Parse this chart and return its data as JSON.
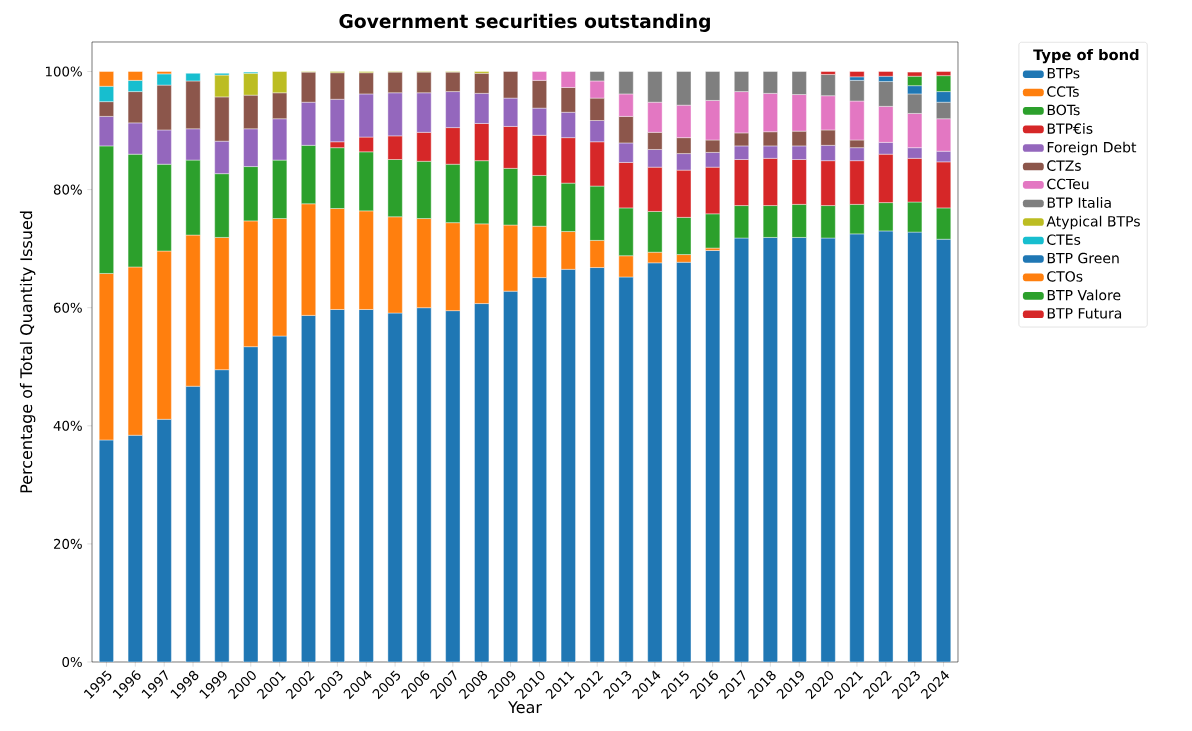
{
  "chart_data": {
    "type": "bar",
    "stacked": true,
    "title": "Government securities outstanding",
    "xlabel": "Year",
    "ylabel": "Percentage of Total Quantity Issued",
    "legend_title": "Type of bond",
    "legend": "right",
    "categories": [
      "1995",
      "1996",
      "1997",
      "1998",
      "1999",
      "2000",
      "2001",
      "2002",
      "2003",
      "2004",
      "2005",
      "2006",
      "2007",
      "2008",
      "2009",
      "2010",
      "2011",
      "2012",
      "2013",
      "2014",
      "2015",
      "2016",
      "2017",
      "2018",
      "2019",
      "2020",
      "2021",
      "2022",
      "2023",
      "2024"
    ],
    "ylim": [
      0,
      105
    ],
    "yticks": [
      {
        "value": 0,
        "label": "0%"
      },
      {
        "value": 20,
        "label": "20%"
      },
      {
        "value": 40,
        "label": "40%"
      },
      {
        "value": 60,
        "label": "60%"
      },
      {
        "value": 80,
        "label": "80%"
      },
      {
        "value": 100,
        "label": "100%"
      }
    ],
    "series": [
      {
        "name": "BTPs",
        "color": "#1f77b4",
        "values": [
          37.6,
          38.4,
          41.1,
          46.7,
          49.5,
          53.4,
          55.2,
          58.7,
          59.7,
          59.7,
          59.1,
          60.0,
          59.5,
          60.7,
          62.8,
          65.1,
          66.5,
          66.8,
          65.2,
          67.6,
          67.7,
          69.7,
          71.8,
          71.9,
          71.9,
          71.8,
          72.5,
          73.0,
          72.8,
          71.6
        ]
      },
      {
        "name": "CCTs",
        "color": "#ff7f0e",
        "values": [
          28.2,
          28.5,
          28.5,
          25.6,
          22.4,
          21.3,
          19.9,
          18.9,
          17.1,
          16.7,
          16.3,
          15.1,
          14.9,
          13.5,
          11.2,
          8.7,
          6.4,
          4.6,
          3.6,
          1.8,
          1.3,
          0.4,
          null,
          null,
          null,
          null,
          null,
          null,
          null,
          null
        ]
      },
      {
        "name": "BOTs",
        "color": "#2ca02c",
        "values": [
          21.6,
          19.1,
          14.7,
          12.7,
          10.8,
          9.2,
          9.9,
          9.9,
          10.3,
          10.0,
          9.7,
          9.7,
          9.9,
          10.7,
          9.6,
          8.6,
          8.2,
          9.2,
          8.1,
          6.9,
          6.3,
          5.8,
          5.5,
          5.4,
          5.6,
          5.5,
          5.0,
          4.8,
          5.1,
          5.3
        ]
      },
      {
        "name": "BTP€is",
        "color": "#d62728",
        "values": [
          null,
          null,
          null,
          null,
          null,
          null,
          null,
          null,
          1.0,
          2.5,
          4.0,
          4.9,
          6.2,
          6.3,
          7.1,
          6.8,
          7.7,
          7.5,
          7.7,
          7.5,
          8.0,
          7.9,
          7.8,
          8.0,
          7.6,
          7.6,
          7.4,
          8.2,
          7.4,
          7.8
        ]
      },
      {
        "name": "Foreign Debt",
        "color": "#9467bd",
        "values": [
          5.0,
          5.3,
          5.8,
          5.3,
          5.5,
          6.4,
          7.0,
          7.3,
          7.2,
          7.3,
          7.3,
          6.7,
          6.1,
          5.1,
          4.8,
          4.6,
          4.3,
          3.6,
          3.3,
          3.0,
          2.8,
          2.5,
          2.3,
          2.1,
          2.3,
          2.6,
          2.2,
          2.0,
          1.8,
          1.8
        ]
      },
      {
        "name": "CTZs",
        "color": "#8c564b",
        "values": [
          2.5,
          5.3,
          7.6,
          8.1,
          7.5,
          5.7,
          4.4,
          5.1,
          4.5,
          3.6,
          3.5,
          3.5,
          3.3,
          3.4,
          4.5,
          4.7,
          4.2,
          3.8,
          4.5,
          2.9,
          2.7,
          2.1,
          2.2,
          2.4,
          2.5,
          2.6,
          1.3,
          null,
          null,
          null
        ]
      },
      {
        "name": "CCTeu",
        "color": "#e377c2",
        "values": [
          null,
          null,
          null,
          null,
          null,
          null,
          null,
          null,
          null,
          null,
          null,
          null,
          null,
          null,
          null,
          1.5,
          2.7,
          2.9,
          3.8,
          5.1,
          5.5,
          6.7,
          7.0,
          6.5,
          6.2,
          5.8,
          6.6,
          6.1,
          5.8,
          5.5
        ]
      },
      {
        "name": "BTP Italia",
        "color": "#7f7f7f",
        "values": [
          null,
          null,
          null,
          null,
          null,
          null,
          null,
          null,
          null,
          null,
          null,
          null,
          null,
          null,
          null,
          null,
          null,
          1.6,
          3.8,
          5.2,
          5.7,
          4.9,
          3.4,
          3.7,
          3.9,
          3.6,
          3.5,
          4.2,
          3.3,
          2.8
        ]
      },
      {
        "name": "Atypical BTPs",
        "color": "#bcbd22",
        "values": [
          null,
          null,
          null,
          null,
          3.7,
          3.7,
          3.6,
          0.1,
          0.2,
          0.2,
          0.1,
          0.1,
          0.1,
          0.3,
          null,
          null,
          null,
          null,
          null,
          null,
          null,
          null,
          null,
          null,
          null,
          null,
          null,
          null,
          null,
          null
        ]
      },
      {
        "name": "CTEs",
        "color": "#17becf",
        "values": [
          2.6,
          1.9,
          1.9,
          1.3,
          0.3,
          0.2,
          null,
          null,
          null,
          null,
          null,
          null,
          null,
          null,
          null,
          null,
          null,
          null,
          null,
          null,
          null,
          null,
          null,
          null,
          null,
          null,
          null,
          null,
          null,
          null
        ]
      },
      {
        "name": "BTP Green",
        "color": "#1f77b4",
        "values": [
          null,
          null,
          null,
          null,
          null,
          null,
          null,
          null,
          null,
          null,
          null,
          null,
          null,
          null,
          null,
          null,
          null,
          null,
          null,
          null,
          null,
          null,
          null,
          null,
          null,
          null,
          0.6,
          0.9,
          1.4,
          1.8
        ]
      },
      {
        "name": "CTOs",
        "color": "#ff7f0e",
        "values": [
          2.5,
          1.5,
          0.4,
          null,
          null,
          null,
          null,
          null,
          null,
          null,
          null,
          null,
          null,
          null,
          null,
          null,
          null,
          null,
          null,
          null,
          null,
          null,
          null,
          null,
          null,
          null,
          null,
          null,
          null,
          null
        ]
      },
      {
        "name": "BTP Valore",
        "color": "#2ca02c",
        "values": [
          null,
          null,
          null,
          null,
          null,
          null,
          null,
          null,
          null,
          null,
          null,
          null,
          null,
          null,
          null,
          null,
          null,
          null,
          null,
          null,
          null,
          null,
          null,
          null,
          null,
          null,
          null,
          null,
          1.6,
          2.7
        ]
      },
      {
        "name": "BTP Futura",
        "color": "#d62728",
        "values": [
          null,
          null,
          null,
          null,
          null,
          null,
          null,
          null,
          null,
          null,
          null,
          null,
          null,
          null,
          null,
          null,
          null,
          null,
          null,
          null,
          null,
          null,
          null,
          null,
          null,
          0.5,
          0.9,
          0.8,
          0.7,
          0.7
        ]
      }
    ]
  }
}
